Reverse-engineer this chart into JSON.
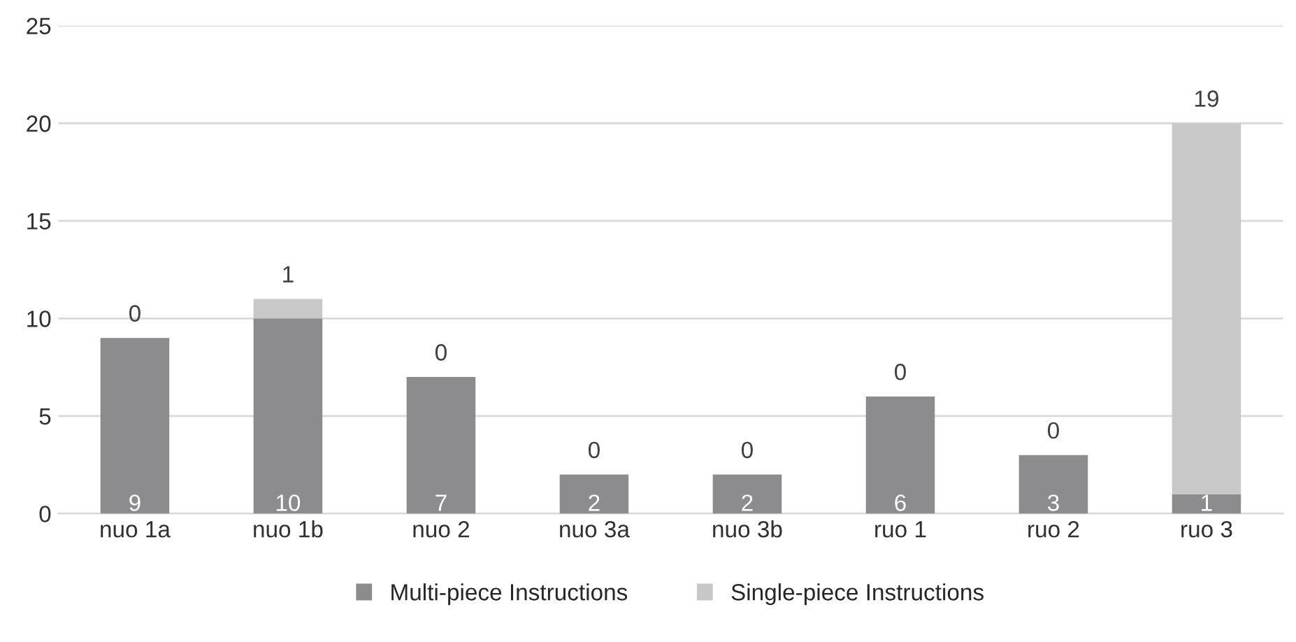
{
  "chart_data": {
    "type": "bar",
    "stacked": true,
    "categories": [
      "nuo 1a",
      "nuo 1b",
      "nuo 2",
      "nuo 3a",
      "nuo 3b",
      "ruo 1",
      "ruo 2",
      "ruo 3"
    ],
    "series": [
      {
        "name": "Multi-piece Instructions",
        "color": "#8c8c8e",
        "values": [
          9,
          10,
          7,
          2,
          2,
          6,
          3,
          1
        ]
      },
      {
        "name": "Single-piece Instructions",
        "color": "#c8c8c8",
        "values": [
          0,
          1,
          0,
          0,
          0,
          0,
          0,
          19
        ]
      }
    ],
    "ylim": [
      0,
      25
    ],
    "yticks": [
      0,
      5,
      10,
      15,
      20,
      25
    ],
    "grid": "y",
    "legend": "bottom",
    "data_labels": true
  }
}
